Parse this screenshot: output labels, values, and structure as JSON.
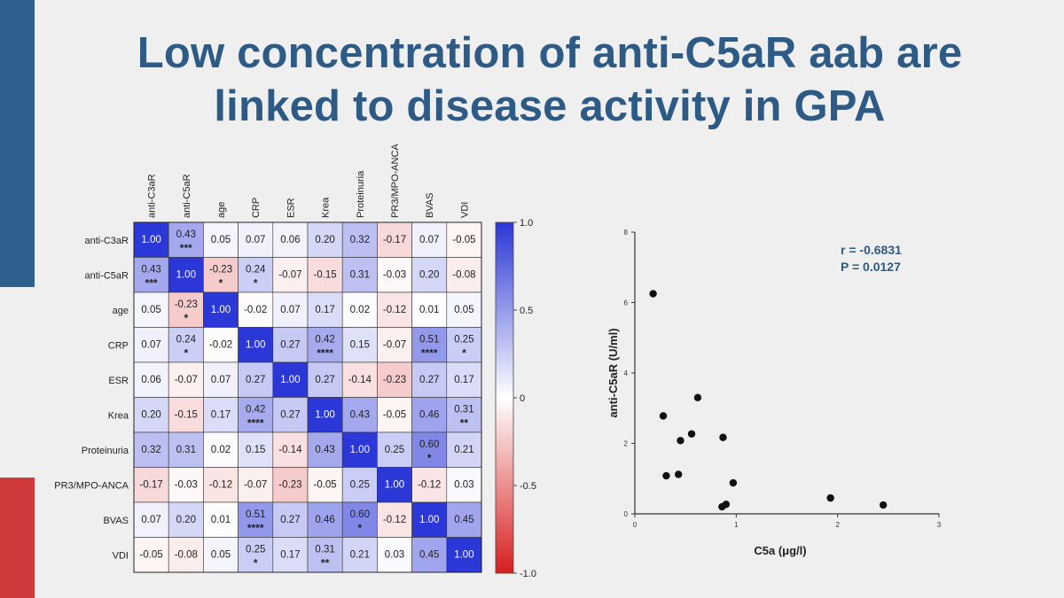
{
  "slide": {
    "title_line1": "Low concentration of anti-C5aR aab are",
    "title_line2": "linked to disease activity in GPA",
    "colors": {
      "accent_blue": "#2e5f8d",
      "accent_red": "#cf3b3b",
      "title": "#2e5b85"
    }
  },
  "chart_data": [
    {
      "type": "heatmap",
      "variables": [
        "anti-C3aR",
        "anti-C5aR",
        "age",
        "CRP",
        "ESR",
        "Krea",
        "Proteinuria",
        "PR3/MPO-ANCA",
        "BVAS",
        "VDI"
      ],
      "values": [
        [
          1.0,
          0.43,
          0.05,
          0.07,
          0.06,
          0.2,
          0.32,
          -0.17,
          0.07,
          -0.05
        ],
        [
          0.43,
          1.0,
          -0.23,
          0.24,
          -0.07,
          -0.15,
          0.31,
          -0.03,
          0.2,
          -0.08
        ],
        [
          0.05,
          -0.23,
          1.0,
          -0.02,
          0.07,
          0.17,
          0.02,
          -0.12,
          0.01,
          0.05
        ],
        [
          0.07,
          0.24,
          -0.02,
          1.0,
          0.27,
          0.42,
          0.15,
          -0.07,
          0.51,
          0.25
        ],
        [
          0.06,
          -0.07,
          0.07,
          0.27,
          1.0,
          0.27,
          -0.14,
          -0.23,
          0.27,
          0.17
        ],
        [
          0.2,
          -0.15,
          0.17,
          0.42,
          0.27,
          1.0,
          0.43,
          -0.05,
          0.46,
          0.31
        ],
        [
          0.32,
          0.31,
          0.02,
          0.15,
          -0.14,
          0.43,
          1.0,
          0.25,
          0.6,
          0.21
        ],
        [
          -0.17,
          -0.03,
          -0.12,
          -0.07,
          -0.23,
          -0.05,
          0.25,
          1.0,
          -0.12,
          0.03
        ],
        [
          0.07,
          0.2,
          0.01,
          0.51,
          0.27,
          0.46,
          0.6,
          -0.12,
          1.0,
          0.45
        ],
        [
          -0.05,
          -0.08,
          0.05,
          0.25,
          0.17,
          0.31,
          0.21,
          0.03,
          0.45,
          1.0
        ]
      ],
      "significance": [
        [
          "",
          "***",
          "",
          "",
          "",
          "",
          "",
          "",
          "",
          ""
        ],
        [
          "***",
          "",
          "*",
          "*",
          "",
          "",
          "",
          "",
          "",
          ""
        ],
        [
          "",
          "*",
          "",
          "",
          "",
          "",
          "",
          "",
          "",
          ""
        ],
        [
          "",
          "*",
          "",
          "",
          "",
          "****",
          "",
          "",
          "****",
          "*"
        ],
        [
          "",
          "",
          "",
          "",
          "",
          "",
          "",
          "",
          "",
          ""
        ],
        [
          "",
          "",
          "",
          "****",
          "",
          "",
          "",
          "",
          "",
          "**"
        ],
        [
          "",
          "",
          "",
          "",
          "",
          "",
          "",
          "",
          "*",
          ""
        ],
        [
          "",
          "",
          "",
          "",
          "",
          "",
          "",
          "",
          "",
          ""
        ],
        [
          "",
          "",
          "",
          "****",
          "",
          "",
          "*",
          "",
          "",
          ""
        ],
        [
          "",
          "",
          "",
          "*",
          "",
          "**",
          "",
          "",
          "",
          ""
        ]
      ],
      "colorbar": {
        "range": [
          -1.0,
          1.0
        ],
        "ticks": [
          "1.0",
          "0.5",
          "0",
          "-0.5",
          "-1.0"
        ],
        "colors": {
          "positive": "#2b37d6",
          "neutral": "#ffffff",
          "negative": "#d81e1e"
        }
      }
    },
    {
      "type": "scatter",
      "xlabel": "C5a (μg/l)",
      "ylabel": "anti-C5aR (U/ml)",
      "xlim": [
        0,
        3
      ],
      "ylim": [
        0,
        8
      ],
      "xticks": [
        "0",
        "1",
        "2",
        "3"
      ],
      "yticks": [
        "0",
        "2",
        "4",
        "6",
        "8"
      ],
      "points": [
        {
          "x": 0.18,
          "y": 6.25
        },
        {
          "x": 0.28,
          "y": 2.78
        },
        {
          "x": 0.31,
          "y": 1.08
        },
        {
          "x": 0.43,
          "y": 1.12
        },
        {
          "x": 0.45,
          "y": 2.08
        },
        {
          "x": 0.56,
          "y": 2.27
        },
        {
          "x": 0.62,
          "y": 3.3
        },
        {
          "x": 0.87,
          "y": 2.17
        },
        {
          "x": 0.86,
          "y": 0.2
        },
        {
          "x": 0.9,
          "y": 0.27
        },
        {
          "x": 0.97,
          "y": 0.88
        },
        {
          "x": 1.93,
          "y": 0.45
        },
        {
          "x": 2.45,
          "y": 0.25
        }
      ],
      "annotation": {
        "r_text": "r  = -0.6831",
        "p_text": "P = 0.0127"
      }
    }
  ]
}
